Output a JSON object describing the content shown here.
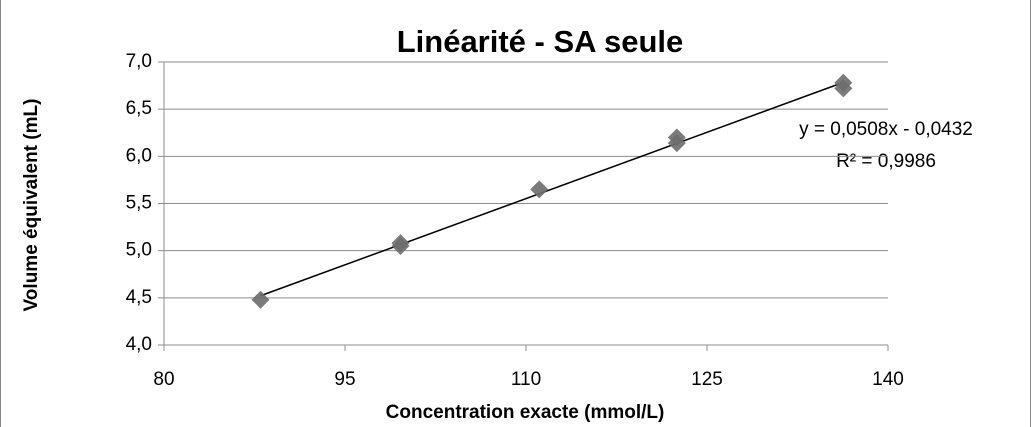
{
  "chart_data": {
    "type": "scatter",
    "title": "Linéarité - SA seule",
    "x_label": "Concentration exacte (mmol/L)",
    "y_label": "Volume équivalent (mL)",
    "series": [
      {
        "name": "SA seule",
        "color": "#6d6d6d",
        "x": [
          88.0,
          99.6,
          99.6,
          111.1,
          122.5,
          122.5,
          136.3,
          136.3
        ],
        "values": [
          4.48,
          5.05,
          5.08,
          5.65,
          6.2,
          6.14,
          6.78,
          6.72
        ]
      }
    ],
    "trendline_equation": "y = 0,0508x - 0,0432",
    "trendline_r2": "R² = 0,9986",
    "xlim": [
      80,
      140
    ],
    "xticks": [
      80,
      95,
      110,
      125,
      140
    ],
    "ylim": [
      4.0,
      7.0
    ],
    "yticks": [
      {
        "value": 4.0,
        "label": "4,0"
      },
      {
        "value": 4.5,
        "label": "4,5"
      },
      {
        "value": 5.0,
        "label": "5,0"
      },
      {
        "value": 5.5,
        "label": "5,5"
      },
      {
        "value": 6.0,
        "label": "6,0"
      },
      {
        "value": 6.5,
        "label": "6,5"
      },
      {
        "value": 7.0,
        "label": "7,0"
      }
    ],
    "grid": true
  }
}
